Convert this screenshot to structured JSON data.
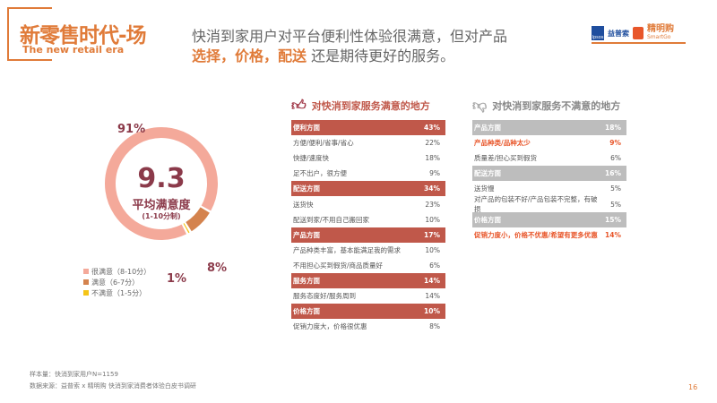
{
  "brand": {
    "title_cn": "新零售时代-场",
    "title_en": "The new retail era",
    "accent": "#E07B39"
  },
  "headline": {
    "line1": "快消到家用户对平台便利性体验很满意，但对产品",
    "highlight": "选择，价格，配送",
    "line2_rest": " 还是期待更好的服务。"
  },
  "logos": {
    "ipsos": "Ipsos",
    "yipu": "益普索",
    "smartgo_cn": "精明购",
    "smartgo_en": "SmartGo"
  },
  "donut": {
    "score": "9.3",
    "score_label": "平均满意度",
    "scale": "(1-10分制)",
    "segments": [
      {
        "label": "很满意（8-10分）",
        "value": 91,
        "pct_text": "91%",
        "color": "#F4A99A"
      },
      {
        "label": "满意（6-7分）",
        "value": 8,
        "pct_text": "8%",
        "color": "#D4834E"
      },
      {
        "label": "不满意（1-5分）",
        "value": 1,
        "pct_text": "1%",
        "color": "#F5C518"
      }
    ]
  },
  "satisfied": {
    "title": "对快消到家服务满意的地方",
    "header_color": "#C0584A",
    "rows": [
      {
        "label": "便利方面",
        "value": "43%",
        "type": "header"
      },
      {
        "label": "方便/便利/省事/省心",
        "value": "22%"
      },
      {
        "label": "快捷/速度快",
        "value": "18%"
      },
      {
        "label": "足不出户，很方便",
        "value": "9%"
      },
      {
        "label": "配送方面",
        "value": "34%",
        "type": "header"
      },
      {
        "label": "送货快",
        "value": "23%"
      },
      {
        "label": "配送到家/不用自己搬回家",
        "value": "10%"
      },
      {
        "label": "产品方面",
        "value": "17%",
        "type": "header"
      },
      {
        "label": "产品种类丰富，基本能满足我的需求",
        "value": "10%"
      },
      {
        "label": "不用担心买到假货/商品质量好",
        "value": "6%"
      },
      {
        "label": "服务方面",
        "value": "14%",
        "type": "header"
      },
      {
        "label": "服务态度好/服务周到",
        "value": "14%"
      },
      {
        "label": "价格方面",
        "value": "10%",
        "type": "header"
      },
      {
        "label": "促销力度大，价格很优惠",
        "value": "8%"
      }
    ]
  },
  "dissatisfied": {
    "title": "对快消到家服务不满意的地方",
    "header_color": "#BDBDBD",
    "rows": [
      {
        "label": "产品方面",
        "value": "18%",
        "type": "header"
      },
      {
        "label": "产品种类/品种太少",
        "value": "9%",
        "type": "em"
      },
      {
        "label": "质量差/担心买到假货",
        "value": "6%"
      },
      {
        "label": "配送方面",
        "value": "16%",
        "type": "header"
      },
      {
        "label": "送货慢",
        "value": "5%"
      },
      {
        "label": "对产品的包装不好/产品包装不完整，有破损",
        "value": "5%"
      },
      {
        "label": "价格方面",
        "value": "15%",
        "type": "header"
      },
      {
        "label": "促销力度小，价格不优惠/希望有更多优惠",
        "value": "14%",
        "type": "em"
      }
    ]
  },
  "footer": {
    "sample": "样本量：快消到家用户N=1159",
    "source": "数据来源：益普索 x 精明购 快消到家消费者体验白皮书调研",
    "page": "16"
  }
}
